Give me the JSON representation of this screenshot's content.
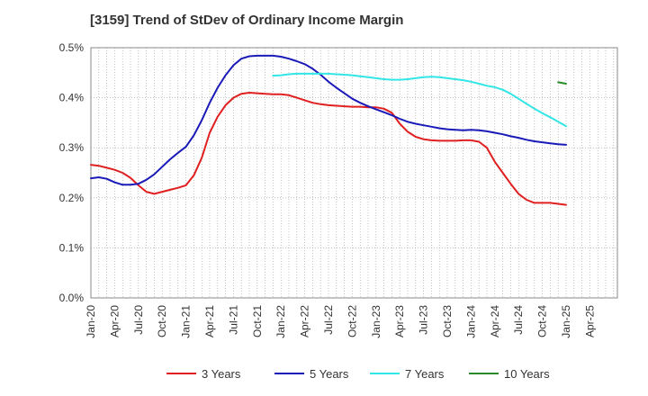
{
  "chart_data": {
    "type": "line",
    "title": "[3159]  Trend of StDev of Ordinary Income Margin",
    "xlabel": "",
    "ylabel": "",
    "x_tick_labels": [
      "Jan-20",
      "Apr-20",
      "Jul-20",
      "Oct-20",
      "Jan-21",
      "Apr-21",
      "Jul-21",
      "Oct-21",
      "Jan-22",
      "Apr-22",
      "Jul-22",
      "Oct-22",
      "Jan-23",
      "Apr-23",
      "Jul-23",
      "Oct-23",
      "Jan-24",
      "Apr-24",
      "Jul-24",
      "Oct-24",
      "Jan-25",
      "Apr-25"
    ],
    "y_tick_labels": [
      "0.0%",
      "0.1%",
      "0.2%",
      "0.3%",
      "0.4%",
      "0.5%"
    ],
    "ylim": [
      0,
      0.5
    ],
    "grid": true,
    "legend_position": "bottom",
    "series": [
      {
        "name": "3 Years",
        "color": "#e02020",
        "x": [
          "2020-01",
          "2020-02",
          "2020-03",
          "2020-04",
          "2020-05",
          "2020-06",
          "2020-07",
          "2020-08",
          "2020-09",
          "2020-10",
          "2020-11",
          "2020-12",
          "2021-01",
          "2021-02",
          "2021-03",
          "2021-04",
          "2021-05",
          "2021-06",
          "2021-07",
          "2021-08",
          "2021-09",
          "2021-10",
          "2021-11",
          "2021-12",
          "2022-01",
          "2022-02",
          "2022-03",
          "2022-04",
          "2022-05",
          "2022-06",
          "2022-07",
          "2022-08",
          "2022-09",
          "2022-10",
          "2022-11",
          "2022-12",
          "2023-01",
          "2023-02",
          "2023-03",
          "2023-04",
          "2023-05",
          "2023-06",
          "2023-07",
          "2023-08",
          "2023-09",
          "2023-10",
          "2023-11",
          "2023-12",
          "2024-01",
          "2024-02",
          "2024-03",
          "2024-04",
          "2024-05",
          "2024-06",
          "2024-07",
          "2024-08",
          "2024-09",
          "2024-10",
          "2024-11",
          "2024-12",
          "2025-01"
        ],
        "values": [
          0.266,
          0.264,
          0.26,
          0.256,
          0.25,
          0.24,
          0.225,
          0.212,
          0.208,
          0.212,
          0.216,
          0.22,
          0.225,
          0.245,
          0.28,
          0.33,
          0.362,
          0.385,
          0.4,
          0.408,
          0.41,
          0.409,
          0.408,
          0.407,
          0.407,
          0.405,
          0.4,
          0.395,
          0.39,
          0.387,
          0.385,
          0.384,
          0.383,
          0.382,
          0.382,
          0.381,
          0.381,
          0.378,
          0.37,
          0.348,
          0.332,
          0.322,
          0.317,
          0.315,
          0.314,
          0.314,
          0.314,
          0.315,
          0.315,
          0.312,
          0.3,
          0.272,
          0.25,
          0.228,
          0.208,
          0.196,
          0.19,
          0.19,
          0.19,
          0.188,
          0.186
        ]
      },
      {
        "name": "5 Years",
        "color": "#1a1ab8",
        "x": [
          "2020-01",
          "2020-02",
          "2020-03",
          "2020-04",
          "2020-05",
          "2020-06",
          "2020-07",
          "2020-08",
          "2020-09",
          "2020-10",
          "2020-11",
          "2020-12",
          "2021-01",
          "2021-02",
          "2021-03",
          "2021-04",
          "2021-05",
          "2021-06",
          "2021-07",
          "2021-08",
          "2021-09",
          "2021-10",
          "2021-11",
          "2021-12",
          "2022-01",
          "2022-02",
          "2022-03",
          "2022-04",
          "2022-05",
          "2022-06",
          "2022-07",
          "2022-08",
          "2022-09",
          "2022-10",
          "2022-11",
          "2022-12",
          "2023-01",
          "2023-02",
          "2023-03",
          "2023-04",
          "2023-05",
          "2023-06",
          "2023-07",
          "2023-08",
          "2023-09",
          "2023-10",
          "2023-11",
          "2023-12",
          "2024-01",
          "2024-02",
          "2024-03",
          "2024-04",
          "2024-05",
          "2024-06",
          "2024-07",
          "2024-08",
          "2024-09",
          "2024-10",
          "2024-11",
          "2024-12",
          "2025-01"
        ],
        "values": [
          0.239,
          0.241,
          0.238,
          0.231,
          0.226,
          0.226,
          0.228,
          0.236,
          0.247,
          0.262,
          0.277,
          0.29,
          0.302,
          0.325,
          0.355,
          0.39,
          0.42,
          0.445,
          0.465,
          0.478,
          0.483,
          0.484,
          0.484,
          0.484,
          0.482,
          0.478,
          0.473,
          0.467,
          0.458,
          0.446,
          0.432,
          0.42,
          0.409,
          0.398,
          0.39,
          0.383,
          0.377,
          0.371,
          0.365,
          0.358,
          0.352,
          0.348,
          0.345,
          0.342,
          0.339,
          0.337,
          0.336,
          0.335,
          0.336,
          0.335,
          0.333,
          0.33,
          0.327,
          0.323,
          0.32,
          0.316,
          0.313,
          0.311,
          0.309,
          0.307,
          0.306
        ]
      },
      {
        "name": "7 Years",
        "color": "#33e6e6",
        "x": [
          "2021-12",
          "2022-01",
          "2022-02",
          "2022-03",
          "2022-04",
          "2022-05",
          "2022-06",
          "2022-07",
          "2022-08",
          "2022-09",
          "2022-10",
          "2022-11",
          "2022-12",
          "2023-01",
          "2023-02",
          "2023-03",
          "2023-04",
          "2023-05",
          "2023-06",
          "2023-07",
          "2023-08",
          "2023-09",
          "2023-10",
          "2023-11",
          "2023-12",
          "2024-01",
          "2024-02",
          "2024-03",
          "2024-04",
          "2024-05",
          "2024-06",
          "2024-07",
          "2024-08",
          "2024-09",
          "2024-10",
          "2024-11",
          "2024-12",
          "2025-01"
        ],
        "values": [
          0.444,
          0.445,
          0.447,
          0.448,
          0.448,
          0.448,
          0.448,
          0.448,
          0.447,
          0.446,
          0.445,
          0.443,
          0.441,
          0.439,
          0.437,
          0.436,
          0.436,
          0.437,
          0.439,
          0.441,
          0.442,
          0.441,
          0.439,
          0.437,
          0.435,
          0.432,
          0.428,
          0.424,
          0.421,
          0.416,
          0.408,
          0.398,
          0.388,
          0.378,
          0.369,
          0.361,
          0.352,
          0.343
        ]
      },
      {
        "name": "10 Years",
        "color": "#2a8a2a",
        "x": [
          "2024-12",
          "2025-01"
        ],
        "values": [
          0.431,
          0.428
        ]
      }
    ]
  }
}
